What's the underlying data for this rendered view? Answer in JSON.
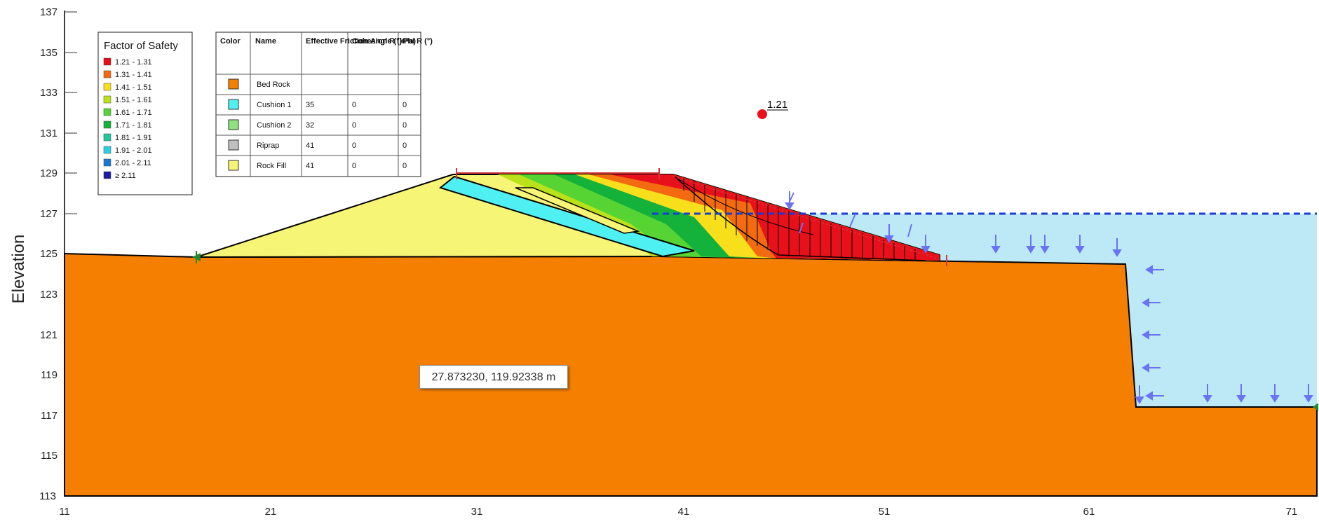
{
  "axes": {
    "ylabel": "Elevation",
    "x_ticks": [
      "11",
      "21",
      "31",
      "41",
      "51",
      "61",
      "71"
    ],
    "y_ticks": [
      "113",
      "115",
      "117",
      "119",
      "121",
      "123",
      "125",
      "127",
      "129",
      "131",
      "133",
      "135",
      "137"
    ]
  },
  "legend": {
    "title": "Factor of Safety",
    "items": [
      {
        "label": "1.21 - 1.31",
        "color": "#e8101a"
      },
      {
        "label": "1.31 - 1.41",
        "color": "#f36a10"
      },
      {
        "label": "1.41 - 1.51",
        "color": "#f7df1c"
      },
      {
        "label": "1.51 - 1.61",
        "color": "#b9e21a"
      },
      {
        "label": "1.61 - 1.71",
        "color": "#56d433"
      },
      {
        "label": "1.71 - 1.81",
        "color": "#14b23a"
      },
      {
        "label": "1.81 - 1.91",
        "color": "#20c79a"
      },
      {
        "label": "1.91 - 2.01",
        "color": "#2ad0df"
      },
      {
        "label": "2.01 - 2.11",
        "color": "#1b78d0"
      },
      {
        "label": "≥ 2.11",
        "color": "#1a1aa8"
      }
    ]
  },
  "materials": {
    "headers": [
      "Color",
      "Name",
      "Effective Friction Angle (°)",
      "Cohesion R (kPa)",
      "Phi R (°)"
    ],
    "rows": [
      {
        "color": "#f57f00",
        "name": "Bed Rock",
        "friction": "",
        "cohesion": "",
        "phi": ""
      },
      {
        "color": "#4ff0f2",
        "name": "Cushion 1",
        "friction": "35",
        "cohesion": "0",
        "phi": "0"
      },
      {
        "color": "#8fe27f",
        "name": "Cushion 2",
        "friction": "32",
        "cohesion": "0",
        "phi": "0"
      },
      {
        "color": "#c0c0c0",
        "name": "Riprap",
        "friction": "41",
        "cohesion": "0",
        "phi": "0"
      },
      {
        "color": "#f7f575",
        "name": "Rock Fill",
        "friction": "41",
        "cohesion": "0",
        "phi": "0"
      }
    ]
  },
  "critical_fos": "1.21",
  "cursor_coordinate": "27.873230, 119.92338 m",
  "colors": {
    "bedrock": "#f57f00",
    "water": "#bde9f6",
    "water_line": "#1a3bd6",
    "load_arrow": "#6b73f5",
    "rockfill": "#f7f575",
    "cushion1": "#4ff0f2",
    "critical_point": "#e8101a"
  }
}
